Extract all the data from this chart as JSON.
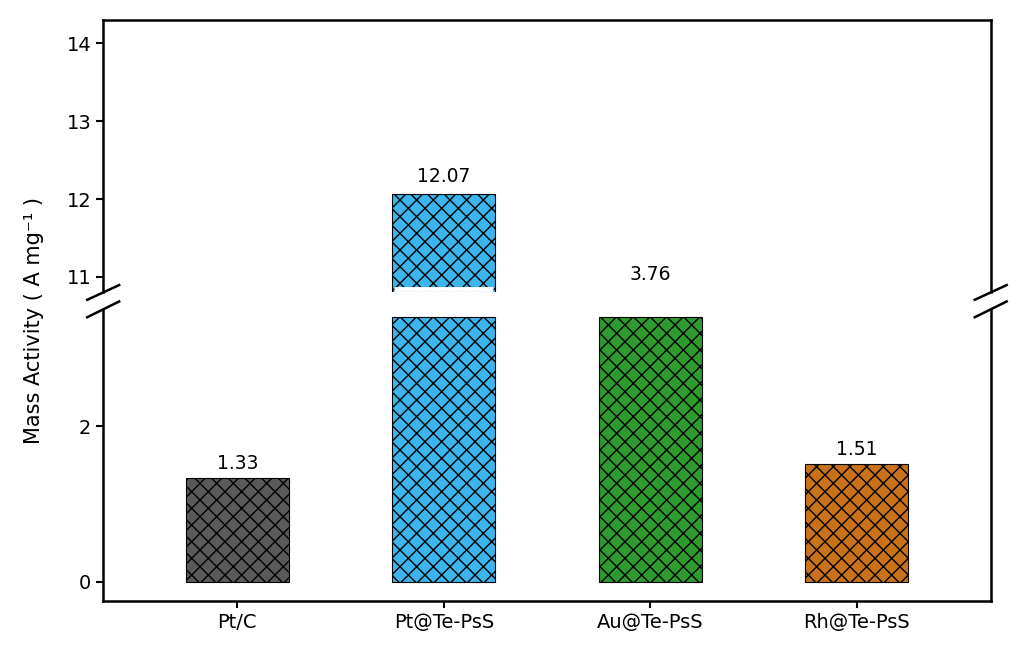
{
  "categories": [
    "Pt/C",
    "Pt@Te-PsS",
    "Au@Te-PsS",
    "Rh@Te-PsS"
  ],
  "values": [
    1.33,
    12.07,
    3.76,
    1.51
  ],
  "bar_colors": [
    "#5A5A5A",
    "#3BB5EC",
    "#2E9B2E",
    "#C8721A"
  ],
  "hatch_patterns": [
    "xx",
    "xx",
    "xx",
    "xx"
  ],
  "value_labels": [
    "1.33",
    "12.07",
    "3.76",
    "1.51"
  ],
  "ylabel": "Mass Activity ( A mg⁻¹ )",
  "background_color": "#ffffff",
  "bar_width": 0.5
}
